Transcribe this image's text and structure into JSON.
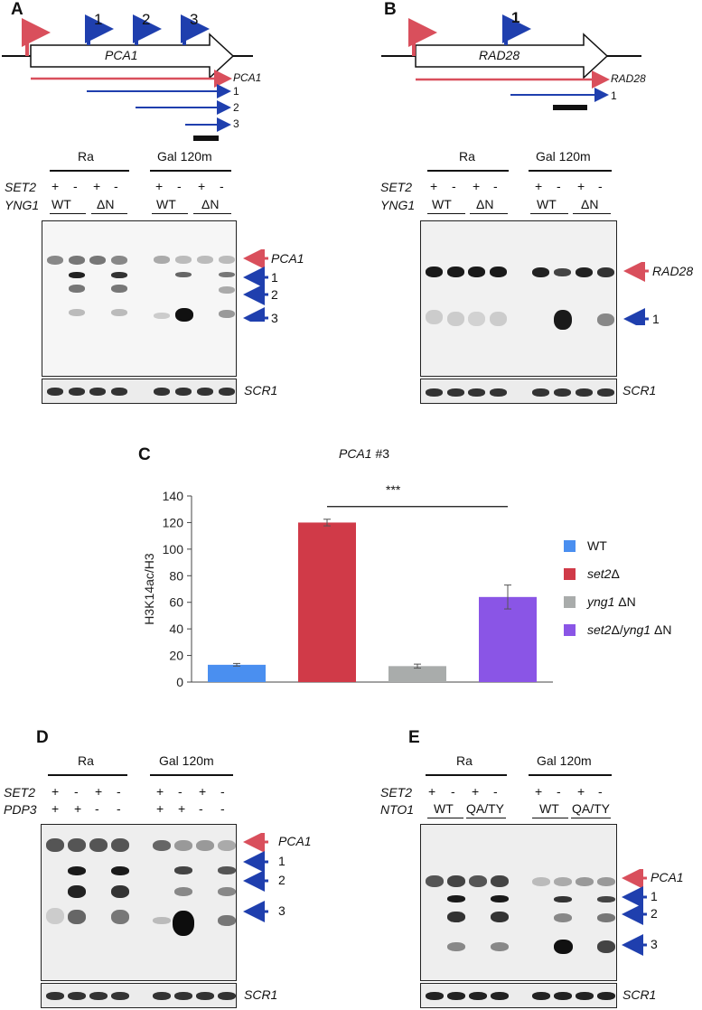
{
  "panels": {
    "A": {
      "letter": "A",
      "gene": "PCA1",
      "tss_numbers": [
        "1",
        "2",
        "3"
      ],
      "transcripts": [
        "PCA1",
        "1",
        "2",
        "3"
      ],
      "groups": [
        "Ra",
        "Gal 120m"
      ],
      "row1_label": "SET2",
      "row1_signs": [
        "+",
        "-",
        "+",
        "-"
      ],
      "row2_label": "YNG1",
      "row2_values": [
        "WT",
        "ΔN"
      ],
      "band_labels": [
        "PCA1",
        "1",
        "2",
        "3"
      ],
      "loading": "SCR1"
    },
    "B": {
      "letter": "B",
      "gene": "RAD28",
      "tss_numbers": [
        "1"
      ],
      "transcripts": [
        "RAD28",
        "1"
      ],
      "groups": [
        "Ra",
        "Gal 120m"
      ],
      "row1_label": "SET2",
      "row1_signs": [
        "+",
        "-",
        "+",
        "-"
      ],
      "row2_label": "YNG1",
      "row2_values": [
        "WT",
        "ΔN"
      ],
      "band_labels": [
        "RAD28",
        "1"
      ],
      "loading": "SCR1"
    },
    "C": {
      "letter": "C",
      "title_gene": "PCA1",
      "title_suffix": "#3",
      "significance": "***"
    },
    "D": {
      "letter": "D",
      "groups": [
        "Ra",
        "Gal 120m"
      ],
      "row1_label": "SET2",
      "row1_signs": [
        "+",
        "-",
        "+",
        "-"
      ],
      "row2_label": "PDP3",
      "row2_signs": [
        "+",
        "+",
        "-",
        "-"
      ],
      "band_labels": [
        "PCA1",
        "1",
        "2",
        "3"
      ],
      "loading": "SCR1"
    },
    "E": {
      "letter": "E",
      "groups": [
        "Ra",
        "Gal 120m"
      ],
      "row1_label": "SET2",
      "row1_signs": [
        "+",
        "-",
        "+",
        "-"
      ],
      "row2_label": "NTO1",
      "row2_values": [
        "WT",
        "QA/TY"
      ],
      "band_labels": [
        "PCA1",
        "1",
        "2",
        "3"
      ],
      "loading": "SCR1"
    }
  },
  "chart_data": {
    "type": "bar",
    "categories": [
      "WT",
      "set2Δ",
      "yng1 ΔN",
      "set2Δ/yng1 ΔN"
    ],
    "values": [
      13,
      120,
      12,
      64
    ],
    "errors": [
      1,
      2.5,
      1.5,
      9
    ],
    "ylabel": "H3K14ac/H3",
    "yticks": [
      "0",
      "20",
      "40",
      "60",
      "80",
      "100",
      "120",
      "140"
    ],
    "ylim": [
      0,
      140
    ],
    "colors": [
      "#4a8ff0",
      "#d03a48",
      "#a9acab",
      "#8a55e6"
    ],
    "legend": [
      {
        "name_italic": "",
        "name_rest": "WT"
      },
      {
        "name_italic": "set2",
        "name_rest": "Δ"
      },
      {
        "name_italic": "yng1",
        "name_rest": " ΔN"
      },
      {
        "name_italic": "set2",
        "name_rest": "Δ/",
        "name_italic2": "yng1",
        "name_rest2": " ΔN"
      }
    ],
    "legend_position": "right",
    "grid": false
  },
  "colors": {
    "red_arrow": "#d94f5c",
    "blue_arrow": "#1f3fae"
  }
}
